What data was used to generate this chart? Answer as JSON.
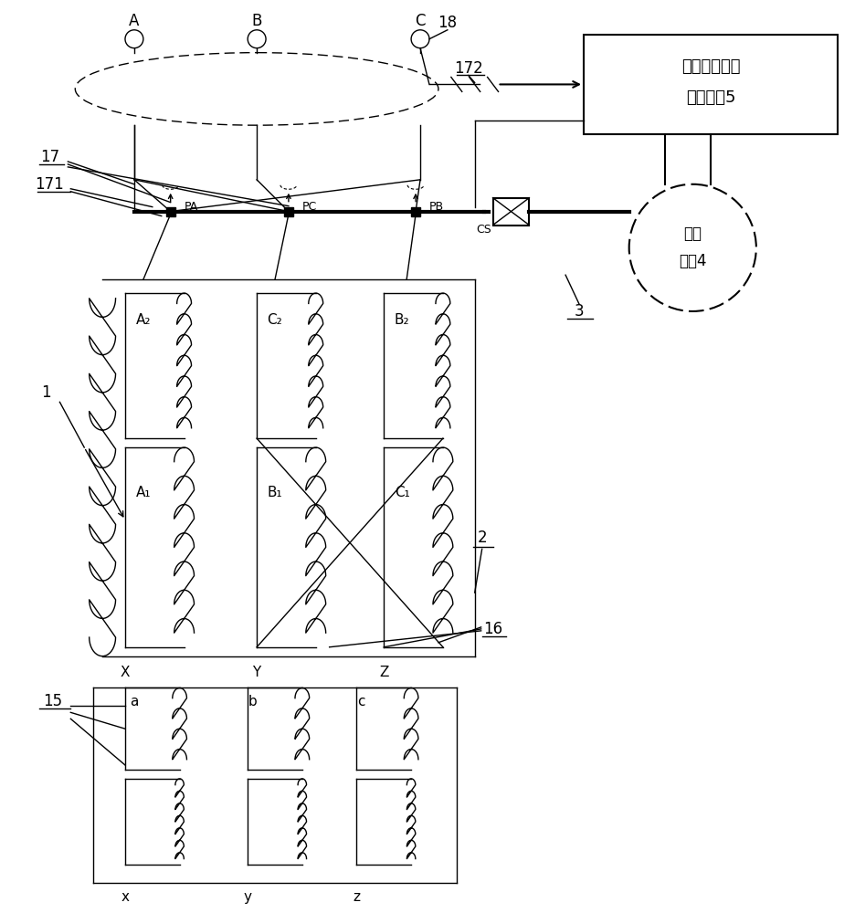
{
  "bg_color": "#ffffff",
  "line_color": "#000000",
  "box1_text_line1": "负序电压检测",
  "box1_text_line2": "控制系统5",
  "circle_text_line1": "伺服",
  "circle_text_line2": "电机4",
  "label_A": "A",
  "label_B": "B",
  "label_C": "C",
  "label_PA": "PA",
  "label_PC": "PC",
  "label_PB": "PB",
  "label_CS": "CS",
  "label_A2": "A₂",
  "label_C2": "C₂",
  "label_B2": "B₂",
  "label_A1": "A₁",
  "label_B1": "B₁",
  "label_C1": "C₁",
  "label_X": "X",
  "label_Y": "Y",
  "label_Z": "Z",
  "label_a": "a",
  "label_b": "b",
  "label_c": "c",
  "label_x": "x",
  "label_y": "y",
  "label_z": "z",
  "label_1": "1",
  "label_2": "2",
  "label_3": "3",
  "label_15": "15",
  "label_16": "16",
  "label_17": "17",
  "label_171": "171",
  "label_172": "172",
  "label_18": "18"
}
